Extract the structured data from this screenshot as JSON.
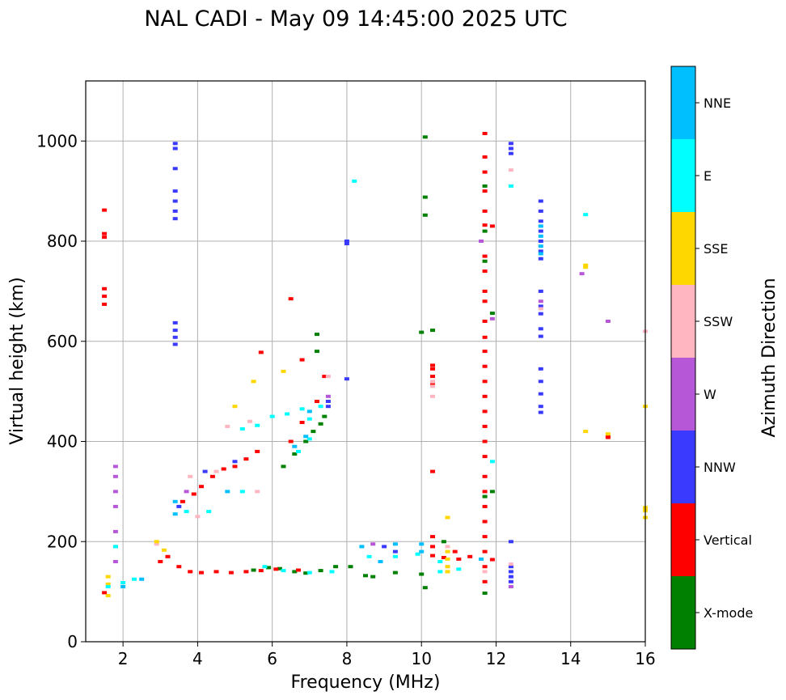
{
  "chart_data": {
    "type": "scatter",
    "title": "NAL CADI - May 09 14:45:00 2025 UTC",
    "xlabel": "Frequency (MHz)",
    "ylabel": "Virtual height (km)",
    "xlim": [
      1,
      16
    ],
    "ylim": [
      0,
      1120
    ],
    "xticks": [
      2,
      4,
      6,
      8,
      10,
      12,
      14,
      16
    ],
    "yticks": [
      0,
      200,
      400,
      600,
      800,
      1000
    ],
    "grid": true,
    "colorbar": {
      "label": "Azimuth Direction",
      "position": "right",
      "categories": [
        {
          "name": "X-mode",
          "color": "#008000"
        },
        {
          "name": "Vertical",
          "color": "#ff0000"
        },
        {
          "name": "NNW",
          "color": "#3a3aff"
        },
        {
          "name": "W",
          "color": "#b557d6"
        },
        {
          "name": "SSW",
          "color": "#ffb6c1"
        },
        {
          "name": "SSE",
          "color": "#ffd700"
        },
        {
          "name": "E",
          "color": "#00ffff"
        },
        {
          "name": "NNE",
          "color": "#00bfff"
        }
      ]
    },
    "series": [
      {
        "name": "X-mode",
        "points": [
          [
            10.1,
            1008
          ],
          [
            10.1,
            888
          ],
          [
            10.1,
            852
          ],
          [
            10.0,
            618
          ],
          [
            10.3,
            622
          ],
          [
            7.2,
            614
          ],
          [
            7.2,
            580
          ],
          [
            11.9,
            656
          ],
          [
            11.9,
            300
          ],
          [
            11.7,
            97
          ],
          [
            10.1,
            108
          ],
          [
            6.3,
            350
          ],
          [
            6.6,
            375
          ],
          [
            6.9,
            400
          ],
          [
            7.1,
            420
          ],
          [
            7.3,
            435
          ],
          [
            7.4,
            450
          ],
          [
            8.5,
            132
          ],
          [
            8.7,
            130
          ],
          [
            9.3,
            138
          ],
          [
            10.0,
            135
          ],
          [
            10.6,
            200
          ],
          [
            5.5,
            143
          ],
          [
            5.9,
            148
          ],
          [
            6.2,
            146
          ],
          [
            6.6,
            140
          ],
          [
            6.9,
            137
          ],
          [
            7.3,
            142
          ],
          [
            7.7,
            150
          ],
          [
            8.1,
            150
          ],
          [
            11.7,
            290
          ],
          [
            11.7,
            910
          ],
          [
            11.7,
            820
          ],
          [
            11.7,
            760
          ]
        ]
      },
      {
        "name": "Vertical",
        "points": [
          [
            1.5,
            862
          ],
          [
            1.5,
            815
          ],
          [
            1.5,
            808
          ],
          [
            1.5,
            705
          ],
          [
            1.5,
            690
          ],
          [
            1.5,
            674
          ],
          [
            1.5,
            98
          ],
          [
            11.7,
            1015
          ],
          [
            11.7,
            968
          ],
          [
            11.7,
            938
          ],
          [
            11.7,
            900
          ],
          [
            11.7,
            860
          ],
          [
            11.7,
            832
          ],
          [
            11.7,
            770
          ],
          [
            11.7,
            740
          ],
          [
            11.7,
            700
          ],
          [
            11.7,
            680
          ],
          [
            11.7,
            640
          ],
          [
            11.7,
            608
          ],
          [
            11.7,
            580
          ],
          [
            11.7,
            550
          ],
          [
            11.7,
            520
          ],
          [
            11.7,
            490
          ],
          [
            11.7,
            460
          ],
          [
            11.7,
            430
          ],
          [
            11.7,
            400
          ],
          [
            11.7,
            370
          ],
          [
            11.7,
            330
          ],
          [
            11.7,
            300
          ],
          [
            11.7,
            270
          ],
          [
            11.7,
            240
          ],
          [
            11.7,
            210
          ],
          [
            11.7,
            180
          ],
          [
            11.7,
            150
          ],
          [
            11.7,
            120
          ],
          [
            11.9,
            830
          ],
          [
            11.9,
            164
          ],
          [
            10.3,
            552
          ],
          [
            10.3,
            545
          ],
          [
            10.3,
            530
          ],
          [
            10.3,
            513
          ],
          [
            10.3,
            340
          ],
          [
            10.3,
            210
          ],
          [
            10.3,
            190
          ],
          [
            10.3,
            172
          ],
          [
            10.6,
            168
          ],
          [
            11.0,
            165
          ],
          [
            11.3,
            170
          ],
          [
            10.9,
            180
          ],
          [
            15.0,
            408
          ],
          [
            15.0,
            410
          ],
          [
            3.6,
            280
          ],
          [
            3.9,
            295
          ],
          [
            4.1,
            310
          ],
          [
            4.4,
            330
          ],
          [
            4.7,
            345
          ],
          [
            5.0,
            350
          ],
          [
            5.3,
            365
          ],
          [
            5.6,
            380
          ],
          [
            3.0,
            160
          ],
          [
            3.2,
            170
          ],
          [
            3.5,
            150
          ],
          [
            3.8,
            140
          ],
          [
            4.1,
            138
          ],
          [
            4.5,
            140
          ],
          [
            4.9,
            138
          ],
          [
            5.3,
            140
          ],
          [
            5.7,
            142
          ],
          [
            6.1,
            145
          ],
          [
            6.7,
            143
          ],
          [
            6.5,
            685
          ],
          [
            5.7,
            578
          ],
          [
            6.8,
            563
          ],
          [
            7.4,
            530
          ],
          [
            7.2,
            480
          ],
          [
            6.8,
            438
          ],
          [
            6.5,
            400
          ]
        ]
      },
      {
        "name": "NNW",
        "points": [
          [
            3.4,
            995
          ],
          [
            3.4,
            985
          ],
          [
            3.4,
            945
          ],
          [
            3.4,
            900
          ],
          [
            3.4,
            880
          ],
          [
            3.4,
            860
          ],
          [
            3.4,
            845
          ],
          [
            3.4,
            637
          ],
          [
            3.4,
            622
          ],
          [
            3.4,
            608
          ],
          [
            3.4,
            594
          ],
          [
            13.2,
            880
          ],
          [
            13.2,
            860
          ],
          [
            13.2,
            840
          ],
          [
            13.2,
            820
          ],
          [
            13.2,
            800
          ],
          [
            13.2,
            780
          ],
          [
            13.2,
            765
          ],
          [
            13.2,
            700
          ],
          [
            13.2,
            670
          ],
          [
            13.2,
            655
          ],
          [
            13.2,
            625
          ],
          [
            13.2,
            610
          ],
          [
            13.2,
            545
          ],
          [
            13.2,
            520
          ],
          [
            13.2,
            495
          ],
          [
            13.2,
            470
          ],
          [
            13.2,
            458
          ],
          [
            12.4,
            995
          ],
          [
            12.4,
            985
          ],
          [
            12.4,
            975
          ],
          [
            12.4,
            200
          ],
          [
            12.4,
            150
          ],
          [
            12.4,
            140
          ],
          [
            12.4,
            130
          ],
          [
            12.4,
            120
          ],
          [
            8.0,
            800
          ],
          [
            8.0,
            795
          ],
          [
            8.0,
            525
          ],
          [
            7.5,
            480
          ],
          [
            7.5,
            470
          ],
          [
            3.5,
            270
          ],
          [
            4.2,
            340
          ],
          [
            5.0,
            360
          ],
          [
            9.0,
            190
          ],
          [
            9.3,
            180
          ]
        ]
      },
      {
        "name": "W",
        "points": [
          [
            1.8,
            350
          ],
          [
            1.8,
            330
          ],
          [
            1.8,
            300
          ],
          [
            1.8,
            270
          ],
          [
            1.8,
            220
          ],
          [
            1.8,
            190
          ],
          [
            1.8,
            160
          ],
          [
            13.2,
            680
          ],
          [
            14.3,
            735
          ],
          [
            15.0,
            640
          ],
          [
            11.9,
            645
          ],
          [
            11.6,
            800
          ],
          [
            12.4,
            110
          ],
          [
            7.5,
            490
          ],
          [
            8.7,
            195
          ],
          [
            3.7,
            300
          ]
        ]
      },
      {
        "name": "SSW",
        "points": [
          [
            12.4,
            942
          ],
          [
            13.2,
            665
          ],
          [
            16.0,
            620
          ],
          [
            10.3,
            510
          ],
          [
            10.3,
            490
          ],
          [
            10.3,
            520
          ],
          [
            4.8,
            430
          ],
          [
            5.4,
            440
          ],
          [
            4.0,
            250
          ],
          [
            5.6,
            300
          ],
          [
            3.8,
            330
          ],
          [
            4.5,
            340
          ],
          [
            2.9,
            195
          ],
          [
            11.7,
            140
          ],
          [
            10.7,
            190
          ],
          [
            10.7,
            150
          ],
          [
            12.4,
            155
          ],
          [
            7.5,
            530
          ]
        ]
      },
      {
        "name": "SSE",
        "points": [
          [
            14.4,
            752
          ],
          [
            14.4,
            748
          ],
          [
            14.4,
            420
          ],
          [
            16.0,
            470
          ],
          [
            16.0,
            268
          ],
          [
            16.0,
            262
          ],
          [
            16.0,
            248
          ],
          [
            15.0,
            415
          ],
          [
            10.7,
            248
          ],
          [
            10.7,
            180
          ],
          [
            10.7,
            165
          ],
          [
            10.7,
            150
          ],
          [
            10.7,
            140
          ],
          [
            6.3,
            540
          ],
          [
            5.5,
            520
          ],
          [
            5.0,
            470
          ],
          [
            1.6,
            130
          ],
          [
            1.6,
            115
          ],
          [
            1.6,
            92
          ],
          [
            2.9,
            200
          ],
          [
            3.1,
            183
          ]
        ]
      },
      {
        "name": "E",
        "points": [
          [
            8.2,
            920
          ],
          [
            12.4,
            910
          ],
          [
            14.4,
            853
          ],
          [
            11.9,
            360
          ],
          [
            1.8,
            190
          ],
          [
            1.6,
            110
          ],
          [
            2.0,
            118
          ],
          [
            2.3,
            125
          ],
          [
            5.2,
            425
          ],
          [
            5.6,
            432
          ],
          [
            6.0,
            450
          ],
          [
            6.4,
            455
          ],
          [
            6.8,
            465
          ],
          [
            7.0,
            445
          ],
          [
            3.7,
            260
          ],
          [
            4.3,
            260
          ],
          [
            5.2,
            300
          ],
          [
            7.3,
            470
          ],
          [
            7.0,
            405
          ],
          [
            6.7,
            380
          ],
          [
            8.6,
            170
          ],
          [
            9.3,
            170
          ],
          [
            9.9,
            175
          ],
          [
            10.5,
            160
          ],
          [
            10.5,
            140
          ],
          [
            11.0,
            145
          ],
          [
            5.8,
            150
          ],
          [
            6.3,
            142
          ],
          [
            7.0,
            138
          ],
          [
            7.6,
            140
          ]
        ]
      },
      {
        "name": "NNE",
        "points": [
          [
            13.2,
            830
          ],
          [
            13.2,
            810
          ],
          [
            13.2,
            790
          ],
          [
            13.2,
            775
          ],
          [
            10.0,
            195
          ],
          [
            10.0,
            180
          ],
          [
            8.4,
            190
          ],
          [
            8.9,
            160
          ],
          [
            9.3,
            195
          ],
          [
            11.6,
            165
          ],
          [
            7.0,
            460
          ],
          [
            6.9,
            410
          ],
          [
            6.6,
            390
          ],
          [
            2.0,
            110
          ],
          [
            2.5,
            125
          ],
          [
            3.4,
            255
          ],
          [
            3.4,
            280
          ],
          [
            4.8,
            300
          ]
        ]
      }
    ]
  }
}
